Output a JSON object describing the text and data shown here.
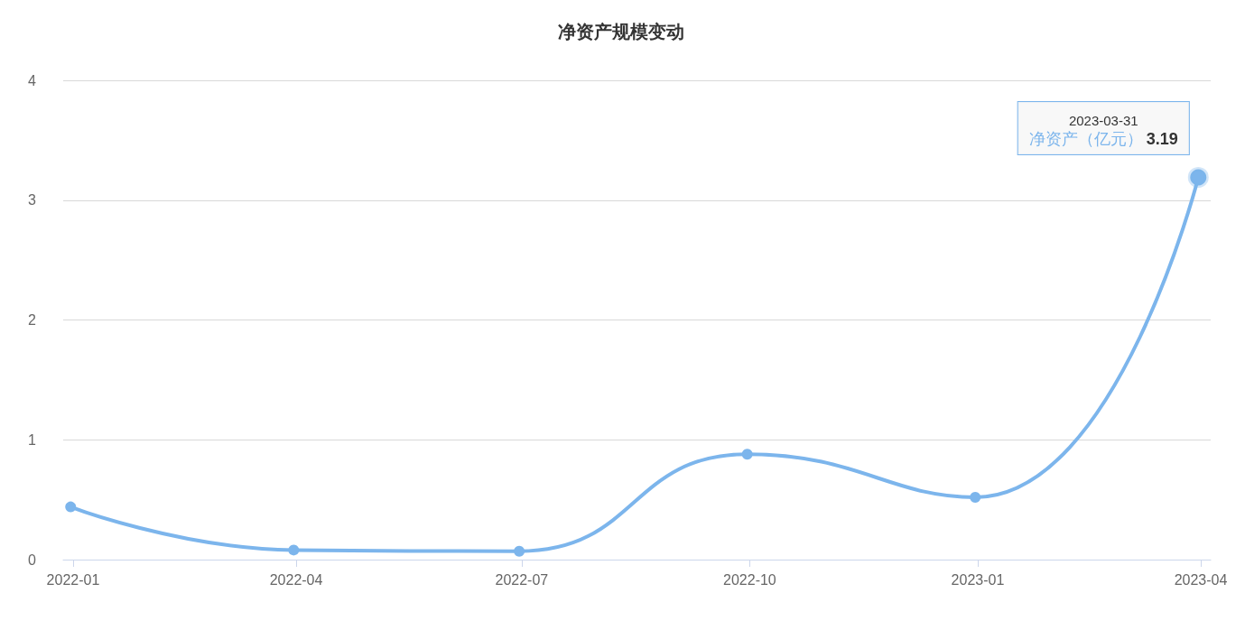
{
  "chart_data": {
    "type": "line",
    "title": "净资产规模变动",
    "x": [
      "2021-12-31",
      "2022-03-31",
      "2022-06-30",
      "2022-09-30",
      "2022-12-31",
      "2023-03-31"
    ],
    "series": [
      {
        "name": "净资产（亿元）",
        "color": "#7cb5ec",
        "values": [
          0.44,
          0.08,
          0.07,
          0.88,
          0.52,
          3.19
        ],
        "value_labels": [
          null,
          null,
          null,
          null,
          null,
          "3.19"
        ]
      }
    ],
    "annotations": [
      "2023-03-31"
    ],
    "xlim": [
      "2021-12-28",
      "2023-04-05"
    ],
    "xticks": [
      {
        "value": "2022-01-01",
        "label": "2022-01"
      },
      {
        "value": "2022-04-01",
        "label": "2022-04"
      },
      {
        "value": "2022-07-01",
        "label": "2022-07"
      },
      {
        "value": "2022-10-01",
        "label": "2022-10"
      },
      {
        "value": "2023-01-01",
        "label": "2023-01"
      },
      {
        "value": "2023-04-01",
        "label": "2023-04"
      }
    ],
    "ylim": [
      0,
      4
    ],
    "yticks": [
      0,
      1,
      2,
      3,
      4
    ],
    "grid": "y",
    "marker": "circle",
    "line_style": "solid",
    "legend": false
  }
}
